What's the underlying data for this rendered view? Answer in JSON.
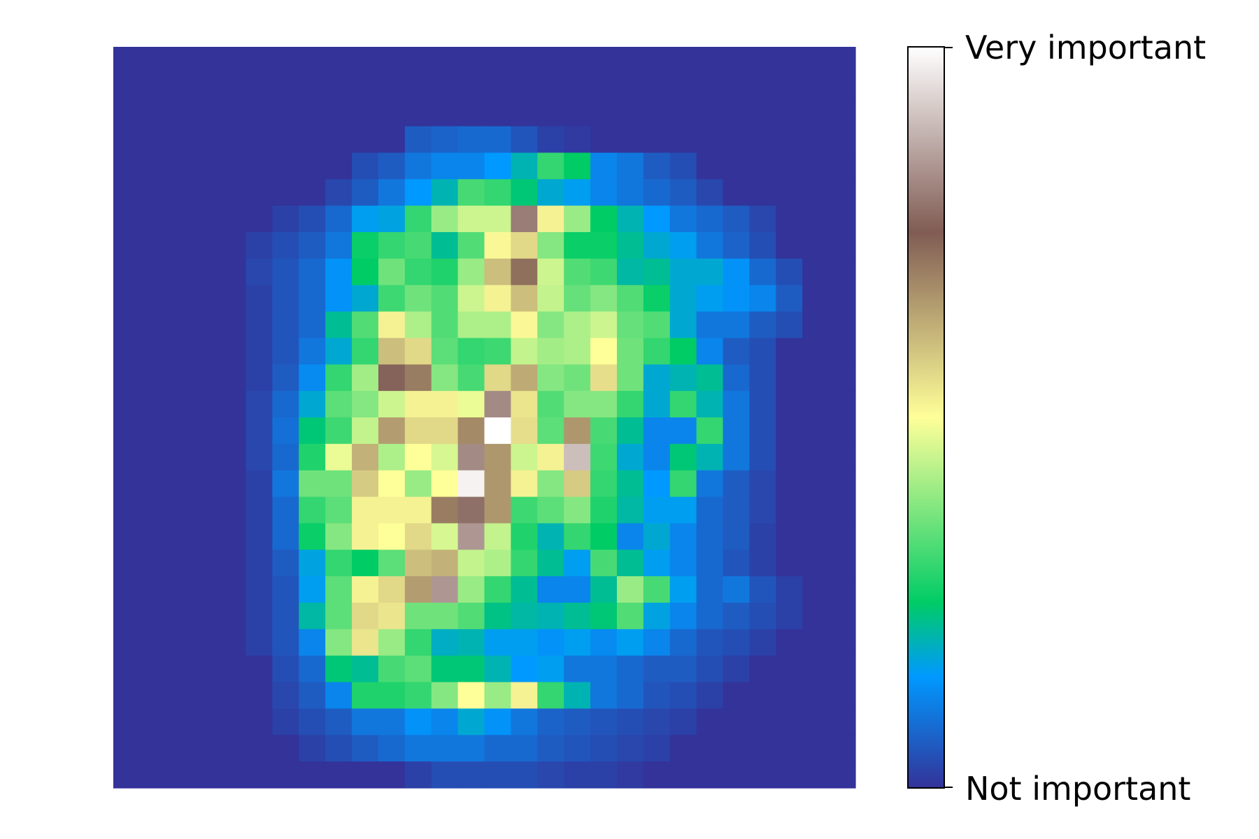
{
  "chart_data": {
    "type": "heatmap",
    "title": "",
    "xlabel": "",
    "ylabel": "",
    "rows": 28,
    "cols": 28,
    "axes_visible": false,
    "value_range": [
      0,
      1
    ],
    "colormap": "terrain",
    "colorbar": {
      "top_label": "Very important",
      "bottom_label": "Not important"
    },
    "values": [
      [
        0,
        0,
        0,
        0,
        0,
        0,
        0,
        0,
        0,
        0,
        0,
        0,
        0,
        0,
        0,
        0,
        0,
        0,
        0,
        0,
        0,
        0,
        0,
        0,
        0,
        0,
        0,
        0
      ],
      [
        0,
        0,
        0,
        0,
        0,
        0,
        0,
        0,
        0,
        0,
        0,
        0,
        0,
        0,
        0,
        0,
        0,
        0,
        0,
        0,
        0,
        0,
        0,
        0,
        0,
        0,
        0,
        0
      ],
      [
        0,
        0,
        0,
        0,
        0,
        0,
        0,
        0,
        0,
        0,
        0,
        0,
        0,
        0,
        0,
        0,
        0,
        0,
        0,
        0,
        0,
        0,
        0,
        0,
        0,
        0,
        0,
        0
      ],
      [
        0,
        0,
        0,
        0,
        0,
        0,
        0,
        0,
        0,
        0,
        0,
        0.06,
        0.07,
        0.08,
        0.08,
        0.05,
        0.02,
        0.01,
        0,
        0,
        0,
        0,
        0,
        0,
        0,
        0,
        0,
        0
      ],
      [
        0,
        0,
        0,
        0,
        0,
        0,
        0,
        0,
        0,
        0.04,
        0.06,
        0.1,
        0.12,
        0.12,
        0.15,
        0.2,
        0.3,
        0.25,
        0.12,
        0.1,
        0.06,
        0.04,
        0,
        0,
        0,
        0,
        0,
        0
      ],
      [
        0,
        0,
        0,
        0,
        0,
        0,
        0,
        0,
        0.03,
        0.06,
        0.1,
        0.15,
        0.2,
        0.32,
        0.3,
        0.24,
        0.18,
        0.16,
        0.12,
        0.1,
        0.08,
        0.06,
        0.03,
        0,
        0,
        0,
        0,
        0
      ],
      [
        0,
        0,
        0,
        0,
        0,
        0,
        0.02,
        0.04,
        0.08,
        0.16,
        0.17,
        0.3,
        0.4,
        0.45,
        0.45,
        0.8,
        0.52,
        0.4,
        0.25,
        0.2,
        0.15,
        0.1,
        0.08,
        0.06,
        0.03,
        0,
        0,
        0
      ],
      [
        0,
        0,
        0,
        0,
        0,
        0.02,
        0.04,
        0.06,
        0.1,
        0.26,
        0.3,
        0.32,
        0.22,
        0.33,
        0.51,
        0.56,
        0.38,
        0.26,
        0.26,
        0.22,
        0.18,
        0.16,
        0.1,
        0.07,
        0.04,
        0,
        0,
        0
      ],
      [
        0,
        0,
        0,
        0,
        0,
        0.03,
        0.05,
        0.08,
        0.14,
        0.25,
        0.36,
        0.3,
        0.28,
        0.4,
        0.6,
        0.72,
        0.45,
        0.33,
        0.31,
        0.21,
        0.22,
        0.18,
        0.18,
        0.14,
        0.08,
        0.04,
        0,
        0
      ],
      [
        0,
        0,
        0,
        0,
        0,
        0.02,
        0.05,
        0.08,
        0.14,
        0.18,
        0.31,
        0.36,
        0.33,
        0.45,
        0.52,
        0.6,
        0.44,
        0.35,
        0.38,
        0.33,
        0.26,
        0.18,
        0.16,
        0.14,
        0.12,
        0.06,
        0,
        0
      ],
      [
        0,
        0,
        0,
        0,
        0,
        0.02,
        0.05,
        0.08,
        0.22,
        0.33,
        0.52,
        0.42,
        0.33,
        0.42,
        0.42,
        0.51,
        0.38,
        0.42,
        0.45,
        0.35,
        0.33,
        0.18,
        0.1,
        0.1,
        0.06,
        0.04,
        0,
        0
      ],
      [
        0,
        0,
        0,
        0,
        0,
        0.02,
        0.05,
        0.1,
        0.18,
        0.3,
        0.6,
        0.56,
        0.34,
        0.3,
        0.31,
        0.44,
        0.41,
        0.42,
        0.5,
        0.36,
        0.3,
        0.25,
        0.12,
        0.06,
        0.04,
        0,
        0,
        0
      ],
      [
        0,
        0,
        0,
        0,
        0,
        0.02,
        0.06,
        0.13,
        0.3,
        0.41,
        0.76,
        0.7,
        0.38,
        0.32,
        0.56,
        0.63,
        0.38,
        0.36,
        0.55,
        0.36,
        0.18,
        0.2,
        0.22,
        0.08,
        0.04,
        0,
        0,
        0
      ],
      [
        0,
        0,
        0,
        0,
        0,
        0.03,
        0.08,
        0.18,
        0.34,
        0.38,
        0.45,
        0.52,
        0.52,
        0.48,
        0.82,
        0.54,
        0.33,
        0.38,
        0.38,
        0.3,
        0.18,
        0.3,
        0.2,
        0.1,
        0.04,
        0,
        0,
        0
      ],
      [
        0,
        0,
        0,
        0,
        0,
        0.03,
        0.09,
        0.24,
        0.31,
        0.44,
        0.65,
        0.56,
        0.56,
        0.68,
        1.0,
        0.55,
        0.34,
        0.66,
        0.32,
        0.22,
        0.12,
        0.12,
        0.3,
        0.1,
        0.04,
        0,
        0,
        0
      ],
      [
        0,
        0,
        0,
        0,
        0,
        0.03,
        0.08,
        0.28,
        0.48,
        0.62,
        0.42,
        0.5,
        0.46,
        0.82,
        0.66,
        0.45,
        0.52,
        0.9,
        0.31,
        0.18,
        0.12,
        0.24,
        0.2,
        0.1,
        0.04,
        0,
        0,
        0
      ],
      [
        0,
        0,
        0,
        0,
        0,
        0.02,
        0.1,
        0.36,
        0.36,
        0.58,
        0.5,
        0.4,
        0.5,
        0.98,
        0.66,
        0.52,
        0.38,
        0.58,
        0.3,
        0.22,
        0.15,
        0.3,
        0.1,
        0.06,
        0.03,
        0,
        0,
        0
      ],
      [
        0,
        0,
        0,
        0,
        0,
        0.02,
        0.08,
        0.3,
        0.34,
        0.52,
        0.52,
        0.52,
        0.7,
        0.78,
        0.66,
        0.31,
        0.34,
        0.38,
        0.28,
        0.21,
        0.16,
        0.16,
        0.08,
        0.06,
        0.03,
        0,
        0,
        0
      ],
      [
        0,
        0,
        0,
        0,
        0,
        0.02,
        0.08,
        0.26,
        0.38,
        0.52,
        0.5,
        0.56,
        0.46,
        0.84,
        0.44,
        0.28,
        0.2,
        0.3,
        0.25,
        0.12,
        0.18,
        0.12,
        0.08,
        0.06,
        0.02,
        0,
        0,
        0
      ],
      [
        0,
        0,
        0,
        0,
        0,
        0.02,
        0.06,
        0.17,
        0.3,
        0.25,
        0.34,
        0.6,
        0.62,
        0.44,
        0.42,
        0.3,
        0.22,
        0.16,
        0.32,
        0.22,
        0.16,
        0.12,
        0.08,
        0.05,
        0.02,
        0,
        0,
        0
      ],
      [
        0,
        0,
        0,
        0,
        0,
        0.02,
        0.05,
        0.16,
        0.34,
        0.52,
        0.56,
        0.65,
        0.84,
        0.4,
        0.3,
        0.22,
        0.12,
        0.12,
        0.22,
        0.4,
        0.32,
        0.16,
        0.08,
        0.1,
        0.05,
        0.02,
        0,
        0
      ],
      [
        0,
        0,
        0,
        0,
        0,
        0.02,
        0.05,
        0.21,
        0.34,
        0.56,
        0.54,
        0.36,
        0.36,
        0.33,
        0.23,
        0.21,
        0.2,
        0.22,
        0.24,
        0.33,
        0.17,
        0.12,
        0.08,
        0.06,
        0.04,
        0.02,
        0,
        0
      ],
      [
        0,
        0,
        0,
        0,
        0,
        0.02,
        0.05,
        0.12,
        0.38,
        0.54,
        0.4,
        0.3,
        0.19,
        0.2,
        0.16,
        0.16,
        0.14,
        0.16,
        0.13,
        0.16,
        0.12,
        0.08,
        0.05,
        0.04,
        0.02,
        0,
        0,
        0
      ],
      [
        0,
        0,
        0,
        0,
        0,
        0,
        0.04,
        0.08,
        0.24,
        0.22,
        0.32,
        0.34,
        0.24,
        0.24,
        0.2,
        0.15,
        0.16,
        0.1,
        0.1,
        0.08,
        0.06,
        0.06,
        0.04,
        0.02,
        0,
        0,
        0,
        0
      ],
      [
        0,
        0,
        0,
        0,
        0,
        0,
        0.03,
        0.06,
        0.12,
        0.28,
        0.28,
        0.3,
        0.38,
        0.5,
        0.4,
        0.52,
        0.3,
        0.2,
        0.1,
        0.08,
        0.05,
        0.04,
        0.02,
        0,
        0,
        0,
        0,
        0
      ],
      [
        0,
        0,
        0,
        0,
        0,
        0,
        0.02,
        0.04,
        0.06,
        0.1,
        0.1,
        0.14,
        0.12,
        0.18,
        0.14,
        0.1,
        0.07,
        0.06,
        0.05,
        0.04,
        0.03,
        0.02,
        0,
        0,
        0,
        0,
        0,
        0
      ],
      [
        0,
        0,
        0,
        0,
        0,
        0,
        0,
        0.02,
        0.04,
        0.06,
        0.08,
        0.1,
        0.1,
        0.1,
        0.08,
        0.08,
        0.06,
        0.05,
        0.04,
        0.03,
        0.02,
        0,
        0,
        0,
        0,
        0,
        0,
        0
      ],
      [
        0,
        0,
        0,
        0,
        0,
        0,
        0,
        0,
        0,
        0,
        0,
        0.02,
        0.04,
        0.04,
        0.04,
        0.04,
        0.03,
        0.02,
        0.02,
        0.01,
        0,
        0,
        0,
        0,
        0,
        0,
        0,
        0
      ]
    ]
  }
}
